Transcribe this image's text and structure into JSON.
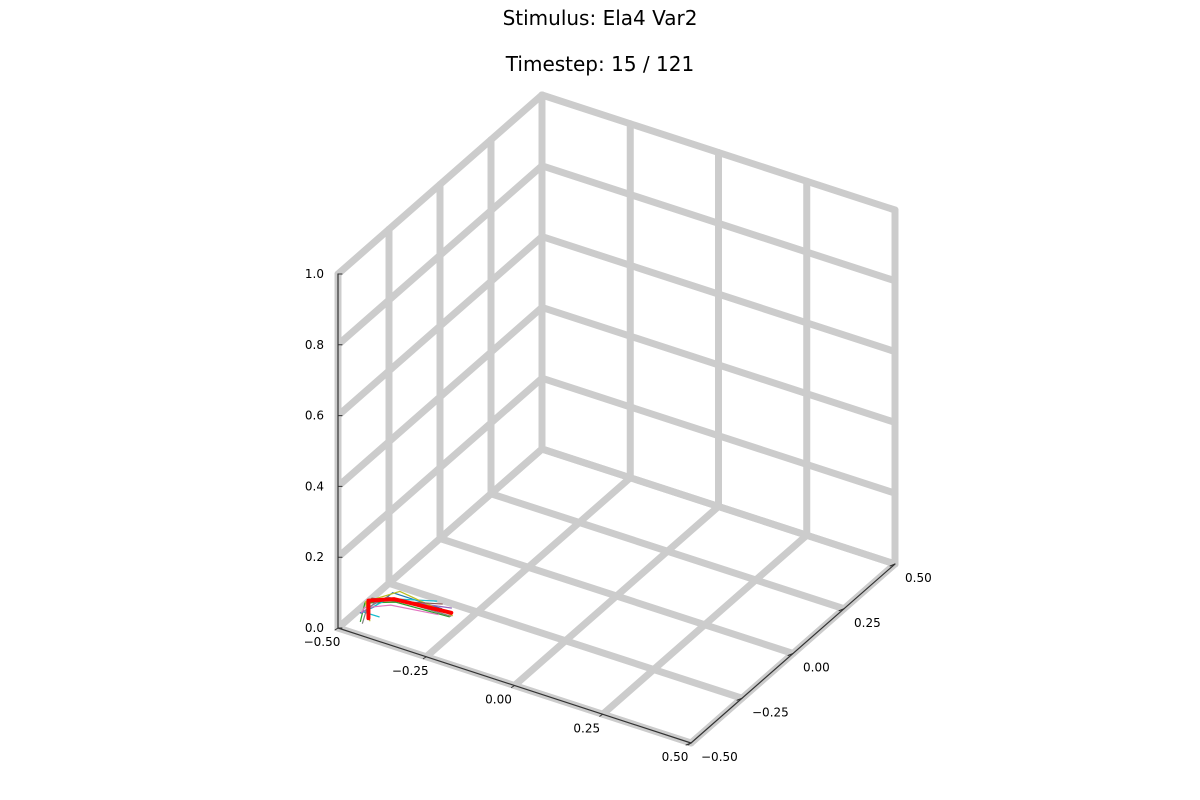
{
  "chart_data": {
    "type": "line",
    "title": "Stimulus: Ela4 Var2",
    "subtitle": "Timestep: 15 / 121",
    "projection": "3d",
    "xlim": [
      -0.5,
      0.5
    ],
    "ylim": [
      -0.5,
      0.5
    ],
    "zlim": [
      0.0,
      1.0
    ],
    "x_ticks": [
      "−0.50",
      "−0.25",
      "0.00",
      "0.25",
      "0.50"
    ],
    "y_ticks": [
      "−0.50",
      "−0.25",
      "0.00",
      "0.25",
      "0.50"
    ],
    "z_ticks": [
      "0.0",
      "0.2",
      "0.4",
      "0.6",
      "0.8",
      "1.0"
    ],
    "grid": true,
    "legend": "none",
    "colors": {
      "main_series": "#ff0000",
      "ensemble": [
        "#1f77b4",
        "#2ca02c",
        "#17becf",
        "#9467bd",
        "#e377c2",
        "#bcbd22",
        "#8c564b",
        "#7f7f7f"
      ],
      "grid": "#cccccc",
      "axis": "#333333"
    },
    "series": [
      {
        "color": "#ff0000",
        "points": [
          [
            -0.46,
            -0.42,
            0.0
          ],
          [
            -0.46,
            -0.42,
            0.05
          ],
          [
            -0.41,
            -0.38,
            0.05
          ],
          [
            -0.26,
            -0.36,
            0.05
          ]
        ]
      }
    ],
    "ensemble_series": [
      [
        [
          -0.49,
          -0.41,
          0.0
        ],
        [
          -0.45,
          -0.41,
          0.03
        ],
        [
          -0.42,
          -0.37,
          0.06
        ],
        [
          -0.28,
          -0.37,
          0.06
        ]
      ],
      [
        [
          -0.46,
          -0.46,
          0.01
        ],
        [
          -0.47,
          -0.42,
          0.04
        ],
        [
          -0.4,
          -0.39,
          0.05
        ],
        [
          -0.27,
          -0.35,
          0.03
        ]
      ],
      [
        [
          -0.44,
          -0.4,
          0.0
        ],
        [
          -0.47,
          -0.43,
          0.02
        ],
        [
          -0.43,
          -0.37,
          0.04
        ],
        [
          -0.3,
          -0.36,
          0.07
        ]
      ],
      [
        [
          -0.47,
          -0.44,
          0.02
        ],
        [
          -0.44,
          -0.41,
          0.05
        ],
        [
          -0.41,
          -0.4,
          0.06
        ],
        [
          -0.27,
          -0.34,
          0.05
        ]
      ],
      [
        [
          -0.48,
          -0.42,
          0.01
        ],
        [
          -0.46,
          -0.44,
          0.04
        ],
        [
          -0.42,
          -0.38,
          0.03
        ],
        [
          -0.29,
          -0.37,
          0.04
        ]
      ],
      [
        [
          -0.45,
          -0.43,
          0.0
        ],
        [
          -0.48,
          -0.4,
          0.03
        ],
        [
          -0.4,
          -0.37,
          0.07
        ],
        [
          -0.25,
          -0.37,
          0.05
        ]
      ],
      [
        [
          -0.47,
          -0.41,
          0.03
        ],
        [
          -0.45,
          -0.42,
          0.06
        ],
        [
          -0.41,
          -0.39,
          0.05
        ],
        [
          -0.29,
          -0.35,
          0.06
        ]
      ],
      [
        [
          -0.46,
          -0.45,
          0.0
        ],
        [
          -0.47,
          -0.41,
          0.02
        ],
        [
          -0.43,
          -0.38,
          0.05
        ],
        [
          -0.26,
          -0.36,
          0.04
        ]
      ]
    ]
  }
}
